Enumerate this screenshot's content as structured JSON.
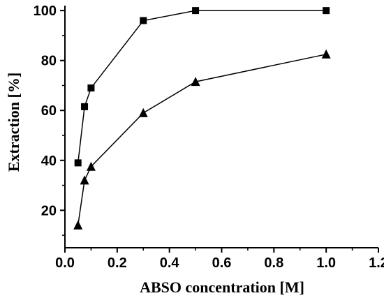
{
  "chart_data": {
    "type": "line",
    "title": "",
    "xlabel": "ABSO concentration [M]",
    "ylabel": "Extraction [%]",
    "xlim": [
      0.0,
      1.2
    ],
    "ylim": [
      5,
      102
    ],
    "x_ticks": [
      0.0,
      0.2,
      0.4,
      0.6,
      0.8,
      1.0,
      1.2
    ],
    "x_tick_labels": [
      "0.0",
      "0.2",
      "0.4",
      "0.6",
      "0.8",
      "1.0",
      "1.2"
    ],
    "y_ticks": [
      20,
      40,
      60,
      80,
      100
    ],
    "y_tick_labels": [
      "20",
      "40",
      "60",
      "80",
      "100"
    ],
    "grid": false,
    "legend": "none",
    "series": [
      {
        "marker": "square",
        "color": "#000000",
        "x": [
          0.05,
          0.075,
          0.1,
          0.3,
          0.5,
          1.0
        ],
        "y": [
          39,
          61.5,
          69,
          96,
          100,
          100
        ]
      },
      {
        "marker": "triangle",
        "color": "#000000",
        "x": [
          0.05,
          0.075,
          0.1,
          0.3,
          0.5,
          1.0
        ],
        "y": [
          14,
          32,
          37.5,
          59,
          71.5,
          82.5
        ]
      }
    ]
  }
}
